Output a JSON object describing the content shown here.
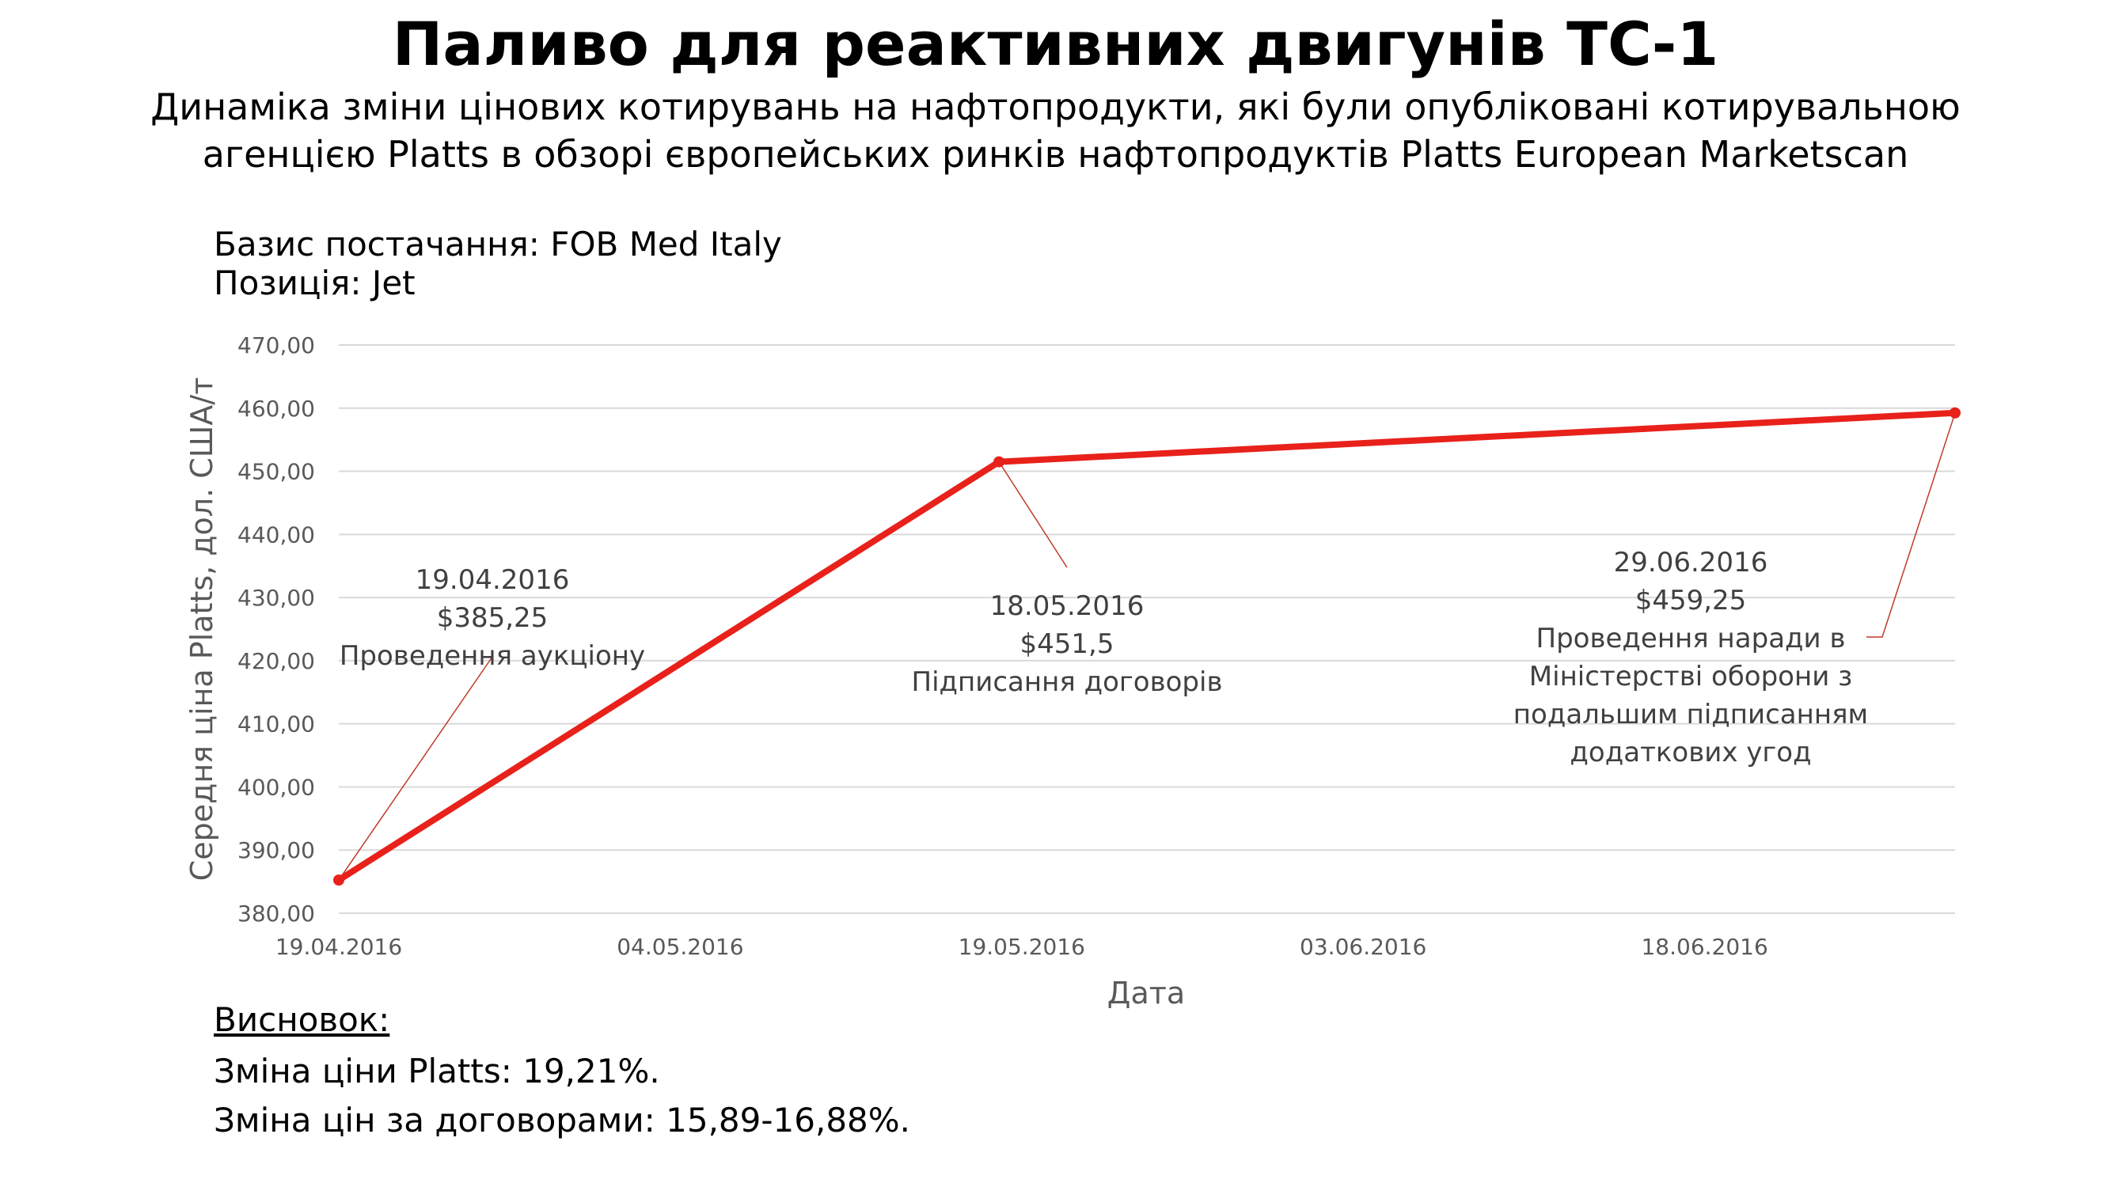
{
  "title": "Паливо для реактивних двигунів ТС-1",
  "subtitle_line1": "Динаміка зміни цінових котирувань на нафтопродукти, які були опубліковані котирувальною",
  "subtitle_line2": "агенцією Platts в обзорі європейських ринків нафтопродуктів Platts European Marketscan",
  "basis": "Базис постачання: FOB Med Italy",
  "position": "Позиція: Jet",
  "conclusion": {
    "heading": "Висновок:",
    "line1": "Зміна ціни Platts: 19,21%.",
    "line2": "Зміна цін за договорами: 15,89-16,88%."
  },
  "chart_data": {
    "type": "line",
    "xlabel": "Дата",
    "ylabel": "Середня ціна Platts, дол. США/т",
    "ylim": [
      380,
      470
    ],
    "y_ticks": [
      "380,00",
      "390,00",
      "400,00",
      "410,00",
      "420,00",
      "430,00",
      "440,00",
      "450,00",
      "460,00",
      "470,00"
    ],
    "x_range": [
      "2016-04-19",
      "2016-06-29"
    ],
    "x_ticks": [
      {
        "date": "2016-04-19",
        "label": "19.04.2016"
      },
      {
        "date": "2016-05-04",
        "label": "04.05.2016"
      },
      {
        "date": "2016-05-19",
        "label": "19.05.2016"
      },
      {
        "date": "2016-06-03",
        "label": "03.06.2016"
      },
      {
        "date": "2016-06-18",
        "label": "18.06.2016"
      }
    ],
    "grid": true,
    "series": [
      {
        "color": "#e8211b",
        "points": [
          {
            "x": "2016-04-19",
            "y": 385.25
          },
          {
            "x": "2016-05-18",
            "y": 451.5
          },
          {
            "x": "2016-06-29",
            "y": 459.25
          }
        ]
      }
    ],
    "annotations": [
      {
        "point_index": 0,
        "lines": [
          "19.04.2016",
          "$385,25",
          "Проведення аукціону"
        ]
      },
      {
        "point_index": 1,
        "lines": [
          "18.05.2016",
          "$451,5",
          "Підписання договорів"
        ]
      },
      {
        "point_index": 2,
        "lines": [
          "29.06.2016",
          "$459,25",
          "Проведення наради в",
          "Міністерстві оборони з",
          "подальшим підписанням",
          "додаткових угод"
        ]
      }
    ]
  }
}
